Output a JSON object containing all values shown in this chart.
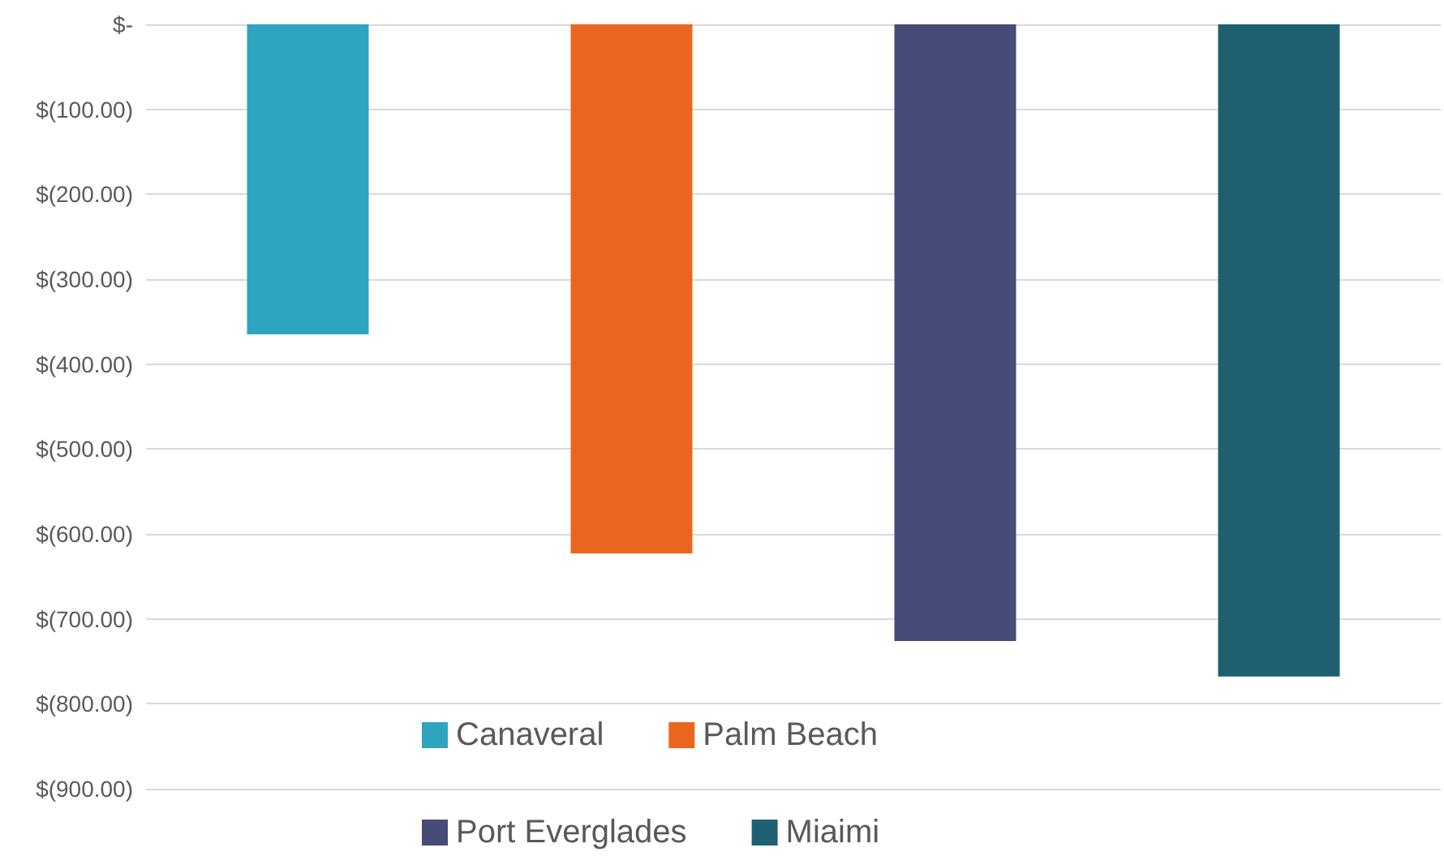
{
  "chart_data": {
    "type": "bar",
    "categories": [
      null,
      null,
      null,
      null
    ],
    "series": [
      {
        "name": "Canaveral",
        "color": "#2ea4c1",
        "values": [
          -365,
          null,
          null,
          null
        ]
      },
      {
        "name": "Palm Beach",
        "color": "#ea661f",
        "values": [
          null,
          -623,
          null,
          null
        ]
      },
      {
        "name": "Port Everglades",
        "color": "#474b77",
        "values": [
          null,
          null,
          -726,
          null
        ]
      },
      {
        "name": "Miaimi",
        "color": "#1e6071",
        "values": [
          null,
          null,
          null,
          -768
        ]
      }
    ],
    "ylim": [
      -900,
      0
    ],
    "yticks": [
      {
        "value": 0,
        "label": "$-"
      },
      {
        "value": -100,
        "label": "$(100.00)"
      },
      {
        "value": -200,
        "label": "$(200.00)"
      },
      {
        "value": -300,
        "label": "$(300.00)"
      },
      {
        "value": -400,
        "label": "$(400.00)"
      },
      {
        "value": -500,
        "label": "$(500.00)"
      },
      {
        "value": -600,
        "label": "$(600.00)"
      },
      {
        "value": -700,
        "label": "$(700.00)"
      },
      {
        "value": -800,
        "label": "$(800.00)"
      },
      {
        "value": -900,
        "label": "$(900.00)"
      }
    ],
    "grid": "y",
    "legend": "bottom"
  }
}
